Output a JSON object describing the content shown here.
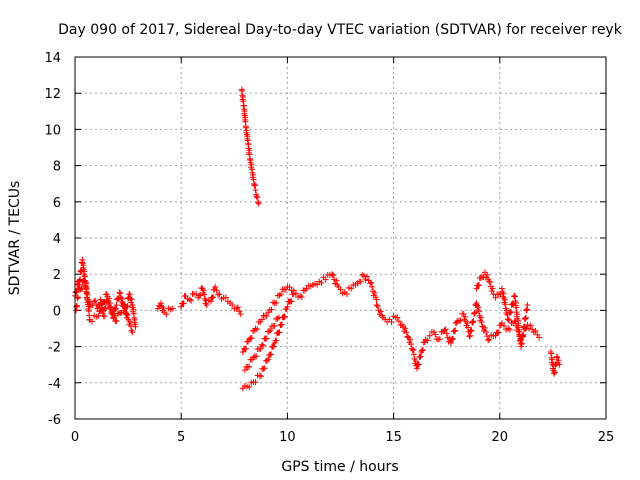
{
  "chart_data": {
    "type": "scatter",
    "title": "Day 090 of 2017, Sidereal Day-to-day VTEC variation (SDTVAR) for receiver reyk",
    "xlabel": "GPS time / hours",
    "ylabel": "SDTVAR / TECUs",
    "xlim": [
      0,
      25
    ],
    "ylim": [
      -6,
      14
    ],
    "xticks": [
      0,
      5,
      10,
      15,
      20,
      25
    ],
    "yticks": [
      -6,
      -4,
      -2,
      0,
      2,
      4,
      6,
      8,
      10,
      12,
      14
    ],
    "grid": true,
    "marker": "+",
    "color": "#ff0000",
    "series": [
      {
        "name": "SDTVAR",
        "segments": [
          {
            "x": [
              0.0,
              0.15,
              0.3,
              0.45,
              0.6,
              0.75,
              0.9,
              1.05,
              1.2,
              1.35,
              1.5,
              1.65,
              1.8,
              1.95,
              2.1,
              2.25,
              2.4,
              2.55,
              2.7,
              2.85
            ],
            "y": [
              0.8,
              1.6,
              1.2,
              1.9,
              0.6,
              0.3,
              0.5,
              0.1,
              0.6,
              -0.3,
              0.5,
              0.2,
              -0.4,
              0.3,
              1.0,
              0.4,
              -0.2,
              0.9,
              0.3,
              -0.9
            ]
          },
          {
            "x": [
              0.05,
              0.35,
              0.7,
              1.1,
              1.5,
              1.9,
              2.3,
              2.7
            ],
            "y": [
              0.0,
              2.8,
              -0.5,
              -0.3,
              0.9,
              -0.6,
              0.3,
              -1.2
            ]
          },
          {
            "x": [
              3.9,
              4.05,
              4.2,
              4.6
            ],
            "y": [
              0.1,
              0.4,
              -0.1,
              0.1
            ]
          },
          {
            "x": [
              5.0,
              5.2,
              5.4,
              5.6,
              5.8,
              6.0,
              6.2,
              6.4,
              6.6,
              6.8,
              7.0,
              7.2,
              7.4,
              7.6,
              7.8
            ],
            "y": [
              0.2,
              0.8,
              0.6,
              0.9,
              0.7,
              1.2,
              0.3,
              0.5,
              1.3,
              0.9,
              0.7,
              0.5,
              0.3,
              0.1,
              -0.2
            ]
          },
          {
            "x": [
              7.85,
              7.95,
              8.05,
              8.15,
              8.25,
              8.35,
              8.45,
              8.55,
              8.65
            ],
            "y": [
              12.2,
              11.3,
              10.1,
              9.2,
              8.3,
              7.6,
              6.9,
              6.3,
              5.9
            ]
          },
          {
            "x": [
              7.9,
              8.2,
              8.5,
              8.8,
              9.1,
              9.4,
              9.7,
              10.0,
              10.3,
              10.6,
              10.9,
              11.2,
              11.5,
              11.8,
              12.1,
              12.4,
              12.7,
              13.0,
              13.3,
              13.6,
              13.9,
              14.2
            ],
            "y": [
              -2.3,
              -1.6,
              -1.0,
              -0.5,
              -0.1,
              0.4,
              0.9,
              1.3,
              1.1,
              0.8,
              1.2,
              1.4,
              1.6,
              1.7,
              2.0,
              1.3,
              1.0,
              1.2,
              1.5,
              1.9,
              1.5,
              0.6
            ]
          },
          {
            "x": [
              7.9,
              8.3,
              8.7,
              9.1,
              9.4,
              9.7,
              10.0,
              10.3
            ],
            "y": [
              -4.3,
              -4.0,
              -3.6,
              -2.7,
              -1.8,
              -0.8,
              0.2,
              0.9
            ]
          },
          {
            "x": [
              8.0,
              8.4,
              8.8,
              9.2,
              9.6
            ],
            "y": [
              -3.3,
              -2.6,
              -1.9,
              -1.1,
              -0.4
            ]
          },
          {
            "x": [
              14.2,
              14.5,
              14.8,
              15.1,
              15.4,
              15.7,
              15.9,
              16.1,
              16.3,
              16.5,
              16.7,
              16.9,
              17.1,
              17.4,
              17.7,
              18.0,
              18.3,
              18.6,
              18.9,
              19.2,
              19.5,
              19.8,
              20.1,
              20.4,
              20.7,
              21.0,
              21.3,
              21.6,
              21.85
            ],
            "y": [
              0.3,
              -0.4,
              -0.5,
              -0.4,
              -0.8,
              -1.5,
              -2.2,
              -3.2,
              -2.3,
              -1.6,
              -1.4,
              -1.2,
              -1.6,
              -1.1,
              -1.8,
              -0.6,
              -0.2,
              -1.4,
              0.4,
              -0.9,
              -1.6,
              -1.4,
              -0.7,
              -1.0,
              -0.6,
              -1.6,
              -0.8,
              -1.2,
              -1.5
            ]
          },
          {
            "x": [
              18.9,
              19.1,
              19.3,
              19.5,
              19.7
            ],
            "y": [
              1.2,
              1.8,
              2.1,
              1.6,
              0.9
            ]
          },
          {
            "x": [
              19.8,
              20.1,
              20.4,
              20.7,
              21.0,
              21.3
            ],
            "y": [
              0.7,
              1.2,
              -0.5,
              0.8,
              -2.0,
              0.3
            ]
          },
          {
            "x": [
              22.4,
              22.55,
              22.7,
              22.8
            ],
            "y": [
              -2.3,
              -3.5,
              -2.6,
              -3.0
            ]
          }
        ]
      }
    ]
  }
}
